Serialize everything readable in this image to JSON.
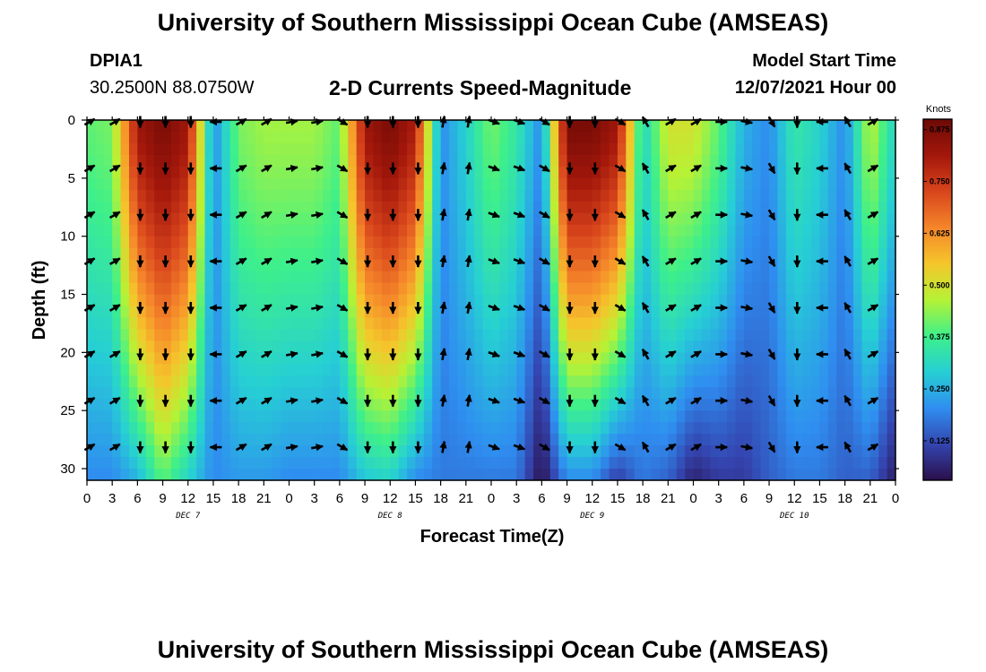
{
  "header": {
    "title": "University of Southern Mississippi Ocean Cube (AMSEAS)",
    "station_id": "DPIA1",
    "station_coords": "30.2500N  88.0750W",
    "chart_title": "2-D Currents Speed-Magnitude",
    "model_start_label": "Model Start Time",
    "model_start_value": "12/07/2021 Hour 00"
  },
  "footer": {
    "repeated_title": "University of Southern Mississippi Ocean Cube (AMSEAS)"
  },
  "colors": {
    "colormap": [
      "#2a0f4a",
      "#3445b0",
      "#2f8ef0",
      "#26cfd4",
      "#3ef08a",
      "#b6f235",
      "#f5c62b",
      "#f5852a",
      "#d8451c",
      "#a3170b",
      "#6c0a06"
    ]
  },
  "chart_data": {
    "type": "heatmap",
    "title": "2-D Currents Speed-Magnitude",
    "xlabel": "Forecast Time(Z)",
    "ylabel": "Depth (ft)",
    "x_ticks": [
      "0",
      "3",
      "6",
      "9",
      "12",
      "15",
      "18",
      "21",
      "0",
      "3",
      "6",
      "9",
      "12",
      "15",
      "18",
      "21",
      "0",
      "3",
      "6",
      "9",
      "12",
      "15",
      "18",
      "21",
      "0",
      "3",
      "6",
      "9",
      "12",
      "15",
      "18",
      "21",
      "0"
    ],
    "x_range_hours": [
      0,
      96
    ],
    "day_labels": [
      {
        "label": "DEC 7",
        "hour": 12
      },
      {
        "label": "DEC 8",
        "hour": 36
      },
      {
        "label": "DEC 9",
        "hour": 60
      },
      {
        "label": "DEC 10",
        "hour": 84
      }
    ],
    "y_ticks": [
      "0",
      "5",
      "10",
      "15",
      "20",
      "25",
      "30"
    ],
    "y_range_ft": [
      0,
      31
    ],
    "colorbar": {
      "title": "Knots",
      "ticks": [
        "0.125",
        "0.250",
        "0.375",
        "0.500",
        "0.625",
        "0.750",
        "0.875"
      ],
      "range": [
        0.03,
        0.9
      ]
    },
    "time_hours": [
      0,
      3,
      6,
      9,
      12,
      15,
      18,
      21,
      24,
      27,
      30,
      33,
      36,
      39,
      42,
      45,
      48,
      51,
      54,
      57,
      60,
      63,
      66,
      69,
      72,
      75,
      78,
      81,
      84,
      87,
      90,
      93,
      96
    ],
    "surface_speed_knots": [
      0.4,
      0.42,
      0.82,
      0.88,
      0.82,
      0.2,
      0.42,
      0.45,
      0.45,
      0.45,
      0.4,
      0.82,
      0.88,
      0.8,
      0.2,
      0.3,
      0.42,
      0.35,
      0.2,
      0.88,
      0.88,
      0.82,
      0.3,
      0.5,
      0.5,
      0.4,
      0.25,
      0.2,
      0.35,
      0.3,
      0.2,
      0.48,
      0.3
    ],
    "bottom_speed_knots": [
      0.2,
      0.2,
      0.25,
      0.4,
      0.3,
      0.2,
      0.22,
      0.22,
      0.2,
      0.2,
      0.2,
      0.28,
      0.3,
      0.2,
      0.18,
      0.18,
      0.18,
      0.18,
      0.03,
      0.2,
      0.2,
      0.1,
      0.18,
      0.15,
      0.06,
      0.1,
      0.1,
      0.15,
      0.18,
      0.18,
      0.15,
      0.15,
      0.05
    ],
    "arrow_depths_ft": [
      0,
      4,
      8,
      12,
      16,
      20,
      24,
      28
    ],
    "arrow_direction_deg": [
      60,
      60,
      180,
      180,
      180,
      270,
      60,
      60,
      80,
      80,
      120,
      180,
      180,
      180,
      10,
      10,
      110,
      110,
      120,
      180,
      180,
      120,
      330,
      60,
      60,
      90,
      100,
      150,
      180,
      270,
      330,
      60,
      60
    ]
  }
}
